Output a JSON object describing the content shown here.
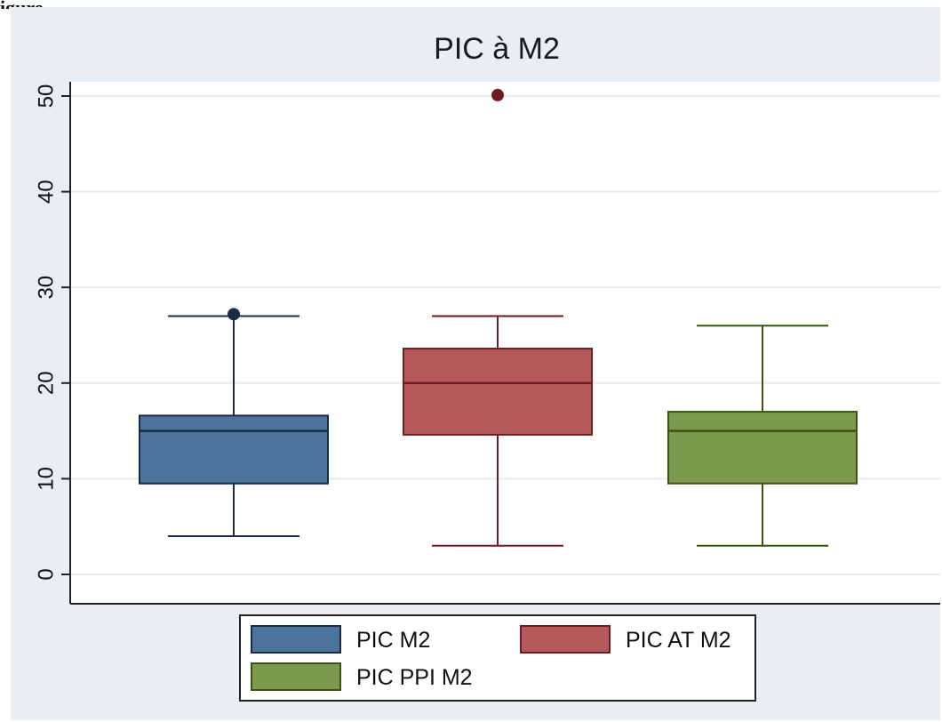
{
  "caption_fragment": "igure",
  "chart_data": {
    "type": "box",
    "title": "PIC à M2",
    "xlabel": "",
    "ylabel": "",
    "ylim": [
      0,
      50
    ],
    "yticks": [
      0,
      10,
      20,
      30,
      40,
      50
    ],
    "grid": true,
    "legend_position": "bottom",
    "series": [
      {
        "name": "PIC M2",
        "color": "#4b739b",
        "line_color": "#1a2c44",
        "min": 4,
        "q1": 9.5,
        "median": 15,
        "q3": 16.6,
        "max": 27,
        "outliers": [
          27.2
        ]
      },
      {
        "name": "PIC AT M2",
        "color": "#b5585c",
        "line_color": "#6e1c20",
        "min": 3,
        "q1": 14.6,
        "median": 20,
        "q3": 23.6,
        "max": 27,
        "outliers": [
          50.1
        ]
      },
      {
        "name": "PIC PPI M2",
        "color": "#7c9a4c",
        "line_color": "#3c5212",
        "min": 3,
        "q1": 9.5,
        "median": 15,
        "q3": 17,
        "max": 26,
        "outliers": []
      }
    ]
  }
}
